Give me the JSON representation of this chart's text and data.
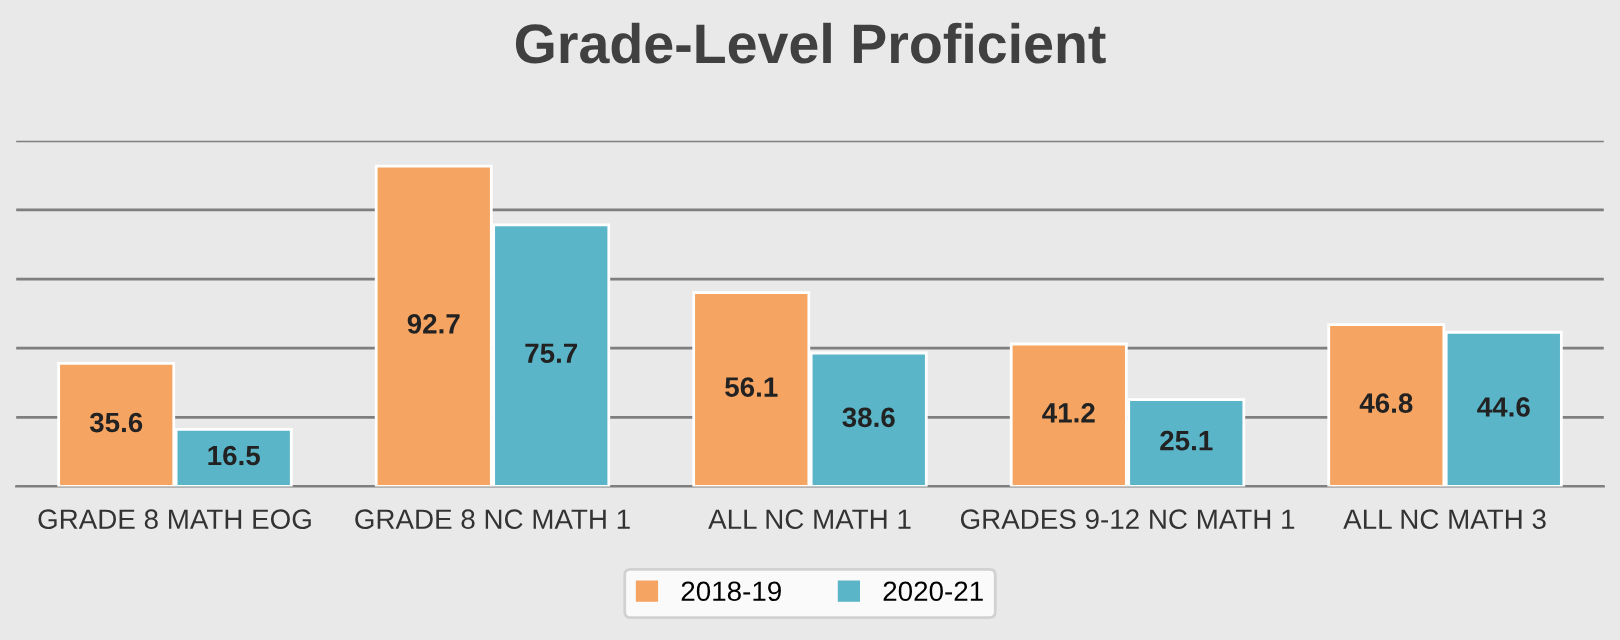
{
  "chart_data": {
    "type": "bar",
    "title": "Grade-Level Proficient",
    "categories": [
      "GRADE 8 MATH EOG",
      "GRADE 8 NC MATH 1",
      "ALL NC MATH 1",
      "GRADES 9-12 NC MATH 1",
      "ALL NC MATH 3"
    ],
    "series": [
      {
        "name": "2018-19",
        "color": "#f5a462",
        "values": [
          35.6,
          92.7,
          56.1,
          41.2,
          46.8
        ]
      },
      {
        "name": "2020-21",
        "color": "#5bb5c9",
        "values": [
          16.5,
          75.7,
          38.6,
          25.1,
          44.6
        ]
      }
    ],
    "ylim": [
      0,
      100
    ],
    "yticks": [
      {
        "value": 0,
        "label": null
      },
      {
        "value": 20,
        "label": null
      },
      {
        "value": 40,
        "label": null
      },
      {
        "value": 60,
        "label": null
      },
      {
        "value": 80,
        "label": null
      },
      {
        "value": 100,
        "label": null
      }
    ],
    "tick_labels": "x",
    "grid": "y",
    "legend": "bottom",
    "data_labels": true
  }
}
